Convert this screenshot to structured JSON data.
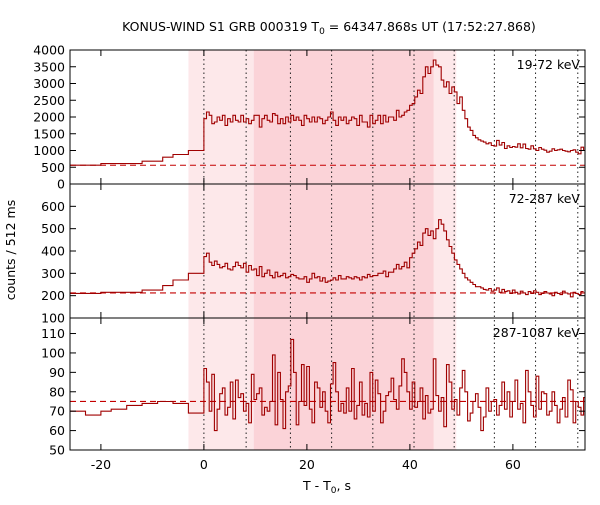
{
  "chart_data": {
    "type": "line",
    "title": {
      "prefix": "KONUS-WIND S1 GRB 000319 T",
      "sub": "0",
      "suffix": " = 64347.868s UT (17:52:27.868)"
    },
    "xlabel": {
      "prefix": "T - T",
      "sub": "0",
      "suffix": ", s"
    },
    "ylabel": "counts / 512 ms",
    "xlim": [
      -26,
      74
    ],
    "xticks": [
      -20,
      0,
      20,
      40,
      60
    ],
    "colors": {
      "curve": "#a00000",
      "background": "#c40000",
      "shade_light": "#fde8ea",
      "shade_dark": "#fbd3d8"
    },
    "shading": {
      "light_interval": [
        -3,
        49
      ],
      "dark_interval": [
        9.7,
        44.6
      ]
    },
    "markers": [
      0,
      8.2,
      16.8,
      24.8,
      32.8,
      40.8,
      48.6,
      56.4,
      64.4,
      72.6
    ],
    "panels": [
      {
        "label": "19-72 keV",
        "ylim": [
          0,
          4000
        ],
        "yticks": [
          0,
          500,
          1000,
          1500,
          2000,
          2500,
          3000,
          3500,
          4000
        ],
        "background_level": 560,
        "pre_trigger": {
          "x": [
            -26,
            -20,
            -12,
            -8,
            -6,
            -3
          ],
          "values": [
            560,
            610,
            680,
            800,
            880,
            1000
          ]
        },
        "bin_width": 0.512,
        "x_start": 0,
        "values": [
          1950,
          2150,
          2050,
          1800,
          1850,
          2000,
          1900,
          2050,
          1750,
          1950,
          1850,
          2050,
          1900,
          1850,
          2050,
          1850,
          1950,
          1800,
          1900,
          2050,
          2050,
          1700,
          1950,
          2050,
          1900,
          1850,
          2100,
          2050,
          1800,
          1950,
          1800,
          2000,
          1850,
          2050,
          1900,
          2000,
          1900,
          1750,
          2050,
          1950,
          1850,
          2000,
          1850,
          2000,
          1950,
          1800,
          1900,
          2000,
          2150,
          1900,
          1750,
          2000,
          1900,
          2000,
          1800,
          1900,
          2000,
          1950,
          1750,
          2050,
          1850,
          1850,
          1700,
          2050,
          1800,
          1900,
          2050,
          1800,
          2050,
          1850,
          2000,
          2000,
          1900,
          2200,
          2000,
          2050,
          2150,
          2200,
          2350,
          2400,
          2600,
          2800,
          2700,
          3200,
          3500,
          3300,
          3500,
          3700,
          3550,
          3500,
          3100,
          2900,
          3050,
          2700,
          2900,
          2750,
          2400,
          2600,
          2200,
          1950,
          1700,
          1600,
          1450,
          1380,
          1320,
          1280,
          1250,
          1200,
          1230,
          1150,
          1130,
          1300,
          1160,
          1240,
          1060,
          1140,
          1090,
          1120,
          1100,
          1200,
          1080,
          1190,
          1060,
          1040,
          1140,
          1050,
          1000,
          1090,
          1040,
          1010,
          950,
          980,
          1050,
          1000,
          1020,
          1040,
          1000,
          980,
          960,
          1000,
          1020,
          950,
          900,
          1100,
          1000,
          980,
          950,
          1040
        ]
      },
      {
        "label": "72-287 keV",
        "ylim": [
          100,
          700
        ],
        "yticks": [
          100,
          200,
          300,
          400,
          500,
          600
        ],
        "background_level": 212,
        "pre_trigger": {
          "x": [
            -26,
            -20,
            -12,
            -8,
            -6,
            -3
          ],
          "values": [
            210,
            215,
            225,
            245,
            270,
            300
          ]
        },
        "bin_width": 0.512,
        "x_start": 0,
        "values": [
          375,
          390,
          350,
          335,
          355,
          340,
          325,
          330,
          345,
          320,
          315,
          330,
          350,
          335,
          325,
          345,
          305,
          335,
          315,
          320,
          290,
          330,
          285,
          300,
          315,
          290,
          280,
          305,
          285,
          290,
          300,
          280,
          285,
          295,
          290,
          280,
          275,
          275,
          285,
          260,
          275,
          300,
          280,
          285,
          265,
          280,
          260,
          265,
          270,
          280,
          270,
          290,
          275,
          275,
          285,
          280,
          275,
          285,
          280,
          270,
          285,
          280,
          295,
          285,
          290,
          290,
          300,
          300,
          310,
          285,
          305,
          305,
          320,
          340,
          320,
          330,
          350,
          325,
          370,
          390,
          410,
          440,
          425,
          480,
          500,
          470,
          490,
          455,
          500,
          540,
          520,
          490,
          450,
          420,
          390,
          360,
          340,
          320,
          300,
          280,
          270,
          260,
          250,
          240,
          240,
          235,
          228,
          225,
          232,
          220,
          225,
          235,
          215,
          228,
          218,
          222,
          210,
          225,
          215,
          208,
          220,
          212,
          205,
          218,
          210,
          222,
          215,
          205,
          210,
          218,
          212,
          208,
          200,
          215,
          210,
          205,
          220,
          212,
          208,
          195,
          215,
          210,
          205,
          218
        ]
      },
      {
        "label": "287-1087 keV",
        "ylim": [
          50,
          118
        ],
        "yticks": [
          50,
          60,
          70,
          80,
          90,
          100,
          110
        ],
        "background_level": 75,
        "pre_trigger": {
          "x": [
            -26,
            -23,
            -20,
            -18,
            -15,
            -12,
            -9,
            -6,
            -3
          ],
          "values": [
            70,
            68,
            70,
            71,
            73,
            74,
            75,
            74,
            69
          ]
        },
        "bin_width": 0.512,
        "x_start": 0,
        "values": [
          92,
          85,
          70,
          89,
          60,
          71,
          79,
          82,
          68,
          72,
          85,
          66,
          86,
          77,
          79,
          70,
          74,
          64,
          89,
          76,
          79,
          82,
          68,
          72,
          70,
          75,
          99,
          63,
          90,
          76,
          61,
          80,
          83,
          107,
          90,
          63,
          75,
          94,
          73,
          93,
          71,
          64,
          85,
          82,
          72,
          80,
          70,
          64,
          84,
          95,
          80,
          70,
          74,
          69,
          82,
          70,
          92,
          66,
          73,
          85,
          68,
          74,
          67,
          90,
          70,
          86,
          79,
          64,
          70,
          78,
          80,
          87,
          76,
          71,
          83,
          97,
          90,
          80,
          71,
          85,
          72,
          75,
          82,
          66,
          78,
          69,
          71,
          97,
          78,
          70,
          77,
          62,
          94,
          85,
          71,
          76,
          68,
          82,
          91,
          80,
          65,
          69,
          75,
          79,
          72,
          60,
          67,
          82,
          70,
          75,
          76,
          68,
          73,
          85,
          71,
          80,
          67,
          75,
          86,
          71,
          74,
          64,
          91,
          80,
          73,
          67,
          88,
          71,
          80,
          79,
          68,
          70,
          80,
          73,
          64,
          71,
          77,
          67,
          86,
          81,
          64,
          75,
          72,
          68,
          77,
          71,
          89,
          74,
          65,
          79
        ]
      }
    ]
  }
}
